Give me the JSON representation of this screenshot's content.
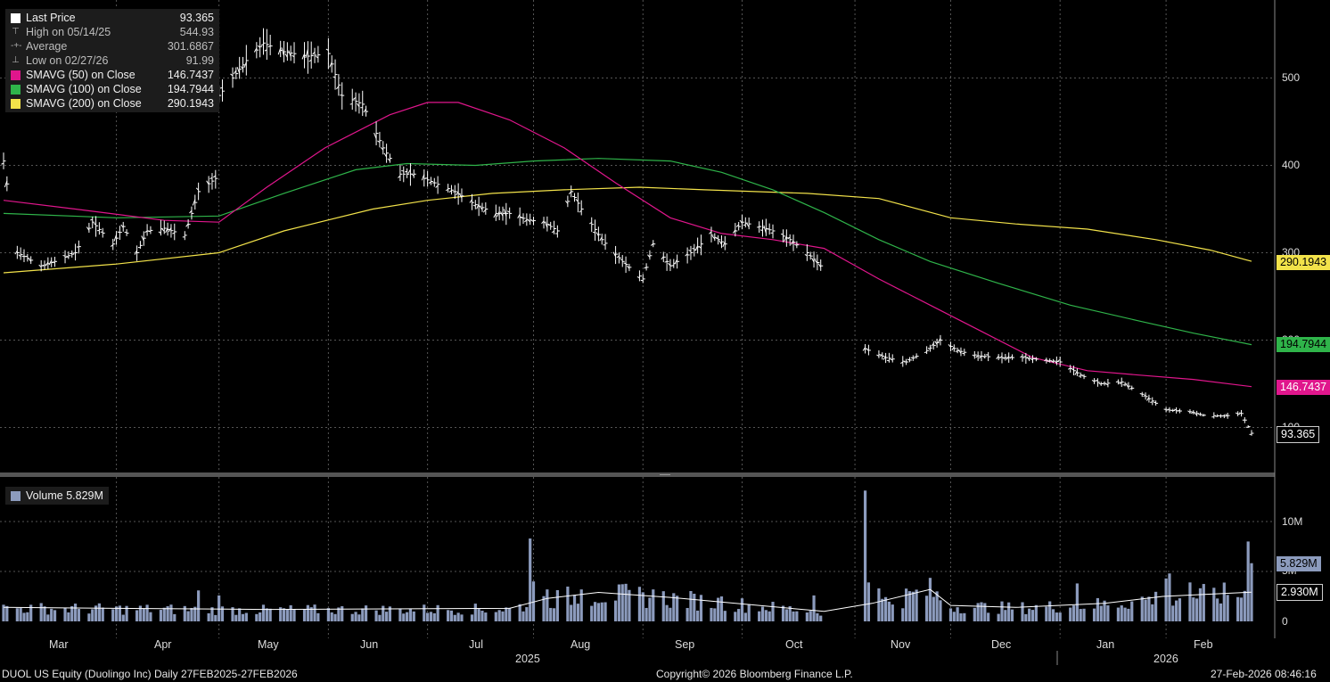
{
  "legend": {
    "last_price_label": "Last Price",
    "last_price_value": "93.365",
    "high_label": "High on 05/14/25",
    "high_value": "544.93",
    "average_label": "Average",
    "average_value": "301.6867",
    "low_label": "Low on 02/27/26",
    "low_value": "91.99",
    "sma50_label": "SMAVG (50)  on Close",
    "sma50_value": "146.7437",
    "sma100_label": "SMAVG (100)  on Close",
    "sma100_value": "194.7944",
    "sma200_label": "SMAVG (200)  on Close",
    "sma200_value": "290.1943"
  },
  "volume_legend": {
    "label": "Volume",
    "value": "5.829M"
  },
  "price_tags": {
    "sma200": "290.1943",
    "sma100": "194.7944",
    "sma50": "146.7437",
    "last": "93.365"
  },
  "volume_tags": {
    "volume": "5.829M",
    "avg": "2.930M"
  },
  "colors": {
    "sma50": "#e0168c",
    "sma100": "#2fb44a",
    "sma200": "#f2e24a",
    "volume": "#8c9bbd",
    "price": "#ffffff",
    "background": "#000000",
    "grid": "#555555"
  },
  "price_axis_ticks": [
    "500",
    "400",
    "300",
    "200",
    "100"
  ],
  "volume_axis_ticks": [
    "10M",
    "5M",
    "0"
  ],
  "month_labels": [
    "Mar",
    "Apr",
    "May",
    "Jun",
    "Jul",
    "Aug",
    "Sep",
    "Oct",
    "Nov",
    "Dec",
    "Jan",
    "Feb"
  ],
  "year_labels": [
    "2025",
    "2026"
  ],
  "footer": {
    "left": "DUOL US Equity (Duolingo Inc) Daily 27FEB2025-27FEB2026",
    "center": "Copyright© 2026 Bloomberg Finance L.P.",
    "right": "27-Feb-2026 08:46:16"
  },
  "chart_data": {
    "type": "line",
    "title": "DUOL US Equity (Duolingo Inc) Daily 27FEB2025-27FEB2026",
    "x_range": [
      "2025-02-27",
      "2026-02-27"
    ],
    "ylim": [
      50,
      570
    ],
    "grid": true,
    "legend_position": "top-left",
    "price_points": [
      [
        "2025-02-27",
        405
      ],
      [
        "2025-03-03",
        300
      ],
      [
        "2025-03-10",
        285
      ],
      [
        "2025-03-14",
        290
      ],
      [
        "2025-03-20",
        300
      ],
      [
        "2025-03-25",
        335
      ],
      [
        "2025-03-31",
        310
      ],
      [
        "2025-04-03",
        330
      ],
      [
        "2025-04-07",
        300
      ],
      [
        "2025-04-10",
        325
      ],
      [
        "2025-04-15",
        328
      ],
      [
        "2025-04-21",
        320
      ],
      [
        "2025-04-25",
        370
      ],
      [
        "2025-04-30",
        385
      ],
      [
        "2025-05-01",
        480
      ],
      [
        "2025-05-05",
        500
      ],
      [
        "2025-05-09",
        520
      ],
      [
        "2025-05-14",
        540
      ],
      [
        "2025-05-20",
        530
      ],
      [
        "2025-05-27",
        525
      ],
      [
        "2025-06-02",
        528
      ],
      [
        "2025-06-06",
        480
      ],
      [
        "2025-06-12",
        470
      ],
      [
        "2025-06-18",
        420
      ],
      [
        "2025-06-23",
        390
      ],
      [
        "2025-06-27",
        390
      ],
      [
        "2025-07-03",
        380
      ],
      [
        "2025-07-09",
        370
      ],
      [
        "2025-07-15",
        355
      ],
      [
        "2025-07-21",
        345
      ],
      [
        "2025-07-25",
        345
      ],
      [
        "2025-07-30",
        338
      ],
      [
        "2025-08-04",
        335
      ],
      [
        "2025-08-08",
        325
      ],
      [
        "2025-08-12",
        370
      ],
      [
        "2025-08-15",
        350
      ],
      [
        "2025-08-21",
        315
      ],
      [
        "2025-08-27",
        290
      ],
      [
        "2025-09-02",
        270
      ],
      [
        "2025-09-05",
        310
      ],
      [
        "2025-09-10",
        285
      ],
      [
        "2025-09-16",
        300
      ],
      [
        "2025-09-22",
        320
      ],
      [
        "2025-09-26",
        310
      ],
      [
        "2025-10-01",
        335
      ],
      [
        "2025-10-06",
        330
      ],
      [
        "2025-10-10",
        325
      ],
      [
        "2025-10-15",
        315
      ],
      [
        "2025-10-20",
        300
      ],
      [
        "2025-10-24",
        285
      ],
      [
        "2025-11-06",
        190
      ],
      [
        "2025-11-12",
        180
      ],
      [
        "2025-11-18",
        175
      ],
      [
        "2025-11-24",
        188
      ],
      [
        "2025-11-28",
        200
      ],
      [
        "2025-12-03",
        188
      ],
      [
        "2025-12-09",
        182
      ],
      [
        "2025-12-15",
        180
      ],
      [
        "2025-12-22",
        180
      ],
      [
        "2026-01-02",
        175
      ],
      [
        "2026-01-08",
        160
      ],
      [
        "2026-01-14",
        150
      ],
      [
        "2026-01-20",
        152
      ],
      [
        "2026-01-26",
        138
      ],
      [
        "2026-02-02",
        120
      ],
      [
        "2026-02-09",
        118
      ],
      [
        "2026-02-13",
        114
      ],
      [
        "2026-02-19",
        113
      ],
      [
        "2026-02-24",
        116
      ],
      [
        "2026-02-27",
        93.365
      ]
    ],
    "series": [
      {
        "name": "SMAVG (50)  on Close",
        "points": [
          [
            "2025-02-27",
            360
          ],
          [
            "2025-03-20",
            350
          ],
          [
            "2025-04-15",
            337
          ],
          [
            "2025-05-01",
            335
          ],
          [
            "2025-05-15",
            375
          ],
          [
            "2025-06-01",
            420
          ],
          [
            "2025-06-20",
            458
          ],
          [
            "2025-07-01",
            472
          ],
          [
            "2025-07-10",
            472
          ],
          [
            "2025-07-25",
            452
          ],
          [
            "2025-08-10",
            420
          ],
          [
            "2025-08-25",
            380
          ],
          [
            "2025-09-10",
            340
          ],
          [
            "2025-09-25",
            322
          ],
          [
            "2025-10-10",
            315
          ],
          [
            "2025-10-25",
            305
          ],
          [
            "2025-11-10",
            270
          ],
          [
            "2025-11-25",
            240
          ],
          [
            "2025-12-10",
            210
          ],
          [
            "2025-12-25",
            180
          ],
          [
            "2026-01-10",
            165
          ],
          [
            "2026-01-25",
            160
          ],
          [
            "2026-02-10",
            155
          ],
          [
            "2026-02-27",
            146.7437
          ]
        ]
      },
      {
        "name": "SMAVG (100)  on Close",
        "points": [
          [
            "2025-02-27",
            345
          ],
          [
            "2025-04-01",
            340
          ],
          [
            "2025-05-01",
            342
          ],
          [
            "2025-05-20",
            368
          ],
          [
            "2025-06-10",
            395
          ],
          [
            "2025-06-25",
            402
          ],
          [
            "2025-07-15",
            400
          ],
          [
            "2025-08-01",
            405
          ],
          [
            "2025-08-20",
            408
          ],
          [
            "2025-09-10",
            405
          ],
          [
            "2025-09-25",
            392
          ],
          [
            "2025-10-10",
            372
          ],
          [
            "2025-10-25",
            346
          ],
          [
            "2025-11-10",
            315
          ],
          [
            "2025-11-25",
            290
          ],
          [
            "2025-12-15",
            265
          ],
          [
            "2026-01-05",
            240
          ],
          [
            "2026-01-25",
            222
          ],
          [
            "2026-02-10",
            208
          ],
          [
            "2026-02-27",
            194.7944
          ]
        ]
      },
      {
        "name": "SMAVG (200)  on Close",
        "points": [
          [
            "2025-02-27",
            277
          ],
          [
            "2025-04-01",
            287
          ],
          [
            "2025-05-01",
            300
          ],
          [
            "2025-05-20",
            325
          ],
          [
            "2025-06-15",
            350
          ],
          [
            "2025-07-01",
            360
          ],
          [
            "2025-07-20",
            368
          ],
          [
            "2025-08-10",
            372
          ],
          [
            "2025-09-01",
            375
          ],
          [
            "2025-09-20",
            372
          ],
          [
            "2025-10-20",
            368
          ],
          [
            "2025-11-10",
            362
          ],
          [
            "2025-12-01",
            340
          ],
          [
            "2025-12-20",
            333
          ],
          [
            "2026-01-10",
            327
          ],
          [
            "2026-01-30",
            315
          ],
          [
            "2026-02-15",
            303
          ],
          [
            "2026-02-27",
            290.1943
          ]
        ]
      }
    ],
    "high": {
      "date": "2025-05-14",
      "value": 544.93
    },
    "low": {
      "date": "2026-02-27",
      "value": 91.99
    },
    "average": 301.6867,
    "volume": {
      "name": "Volume",
      "unit": "M",
      "ylim": [
        0,
        14
      ],
      "last": 5.829,
      "avg_last": 2.93,
      "spikes": [
        [
          "2025-03-01",
          3.4
        ],
        [
          "2025-04-25",
          3.1
        ],
        [
          "2025-05-01",
          2.6
        ],
        [
          "2025-07-31",
          8.3
        ],
        [
          "2025-08-01",
          4.0
        ],
        [
          "2025-08-05",
          3.2
        ],
        [
          "2025-08-15",
          3.2
        ],
        [
          "2025-09-05",
          3.2
        ],
        [
          "2025-09-25",
          2.5
        ],
        [
          "2025-10-22",
          2.6
        ],
        [
          "2025-11-06",
          13.1
        ],
        [
          "2025-11-07",
          3.9
        ],
        [
          "2025-11-10",
          3.3
        ],
        [
          "2026-01-07",
          3.8
        ],
        [
          "2026-02-02",
          4.3
        ],
        [
          "2026-02-03",
          4.8
        ],
        [
          "2026-02-09",
          3.9
        ],
        [
          "2026-02-26",
          8.0
        ],
        [
          "2026-02-27",
          5.829
        ]
      ],
      "avg_points": [
        [
          "2025-02-27",
          1.4
        ],
        [
          "2025-04-01",
          1.3
        ],
        [
          "2025-05-15",
          1.2
        ],
        [
          "2025-07-25",
          1.3
        ],
        [
          "2025-08-05",
          2.3
        ],
        [
          "2025-08-20",
          2.9
        ],
        [
          "2025-09-10",
          2.4
        ],
        [
          "2025-10-25",
          1.0
        ],
        [
          "2025-11-08",
          1.8
        ],
        [
          "2025-11-25",
          3.2
        ],
        [
          "2025-12-01",
          1.6
        ],
        [
          "2025-12-20",
          1.4
        ],
        [
          "2026-01-15",
          1.8
        ],
        [
          "2026-02-01",
          2.5
        ],
        [
          "2026-02-27",
          2.93
        ]
      ]
    }
  }
}
